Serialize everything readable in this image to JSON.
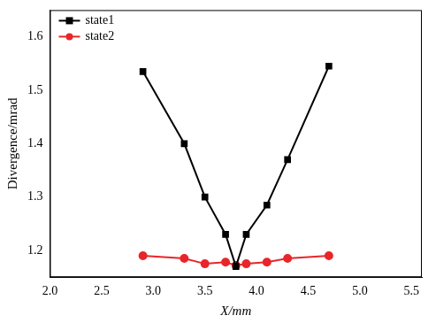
{
  "chart_data": {
    "type": "line",
    "x_label": "X/mm",
    "y_label": "Divergence/mrad",
    "xlim": [
      2.0,
      5.6
    ],
    "xticks": [
      {
        "value": 2,
        "label": "2.0"
      },
      {
        "value": 2.5,
        "label": "2.5"
      },
      {
        "value": 3,
        "label": "3.0"
      },
      {
        "value": 3.5,
        "label": "3.5"
      },
      {
        "value": 4,
        "label": "4.0"
      },
      {
        "value": 4.5,
        "label": "4.5"
      },
      {
        "value": 5,
        "label": "5.0"
      },
      {
        "value": 5.5,
        "label": "5.5"
      }
    ],
    "ylim": [
      1.15,
      1.65
    ],
    "yticks": [
      1.2,
      1.3,
      1.4,
      1.5,
      1.6
    ],
    "grid": false,
    "legend": "upper left",
    "x": [
      2.9,
      3.3,
      3.5,
      3.7,
      3.8,
      3.9,
      4.1,
      4.3,
      4.7
    ],
    "series": [
      {
        "name": "state1",
        "color": "#000000",
        "marker": "square",
        "line_style": "solid",
        "values": [
          1.535,
          1.4,
          1.3,
          1.23,
          1.17,
          1.23,
          1.285,
          1.37,
          1.545
        ]
      },
      {
        "name": "state2",
        "color": "#e8262a",
        "marker": "circle",
        "line_style": "solid",
        "values": [
          1.19,
          1.185,
          1.175,
          1.178,
          1.172,
          1.175,
          1.178,
          1.185,
          1.19
        ]
      }
    ]
  }
}
